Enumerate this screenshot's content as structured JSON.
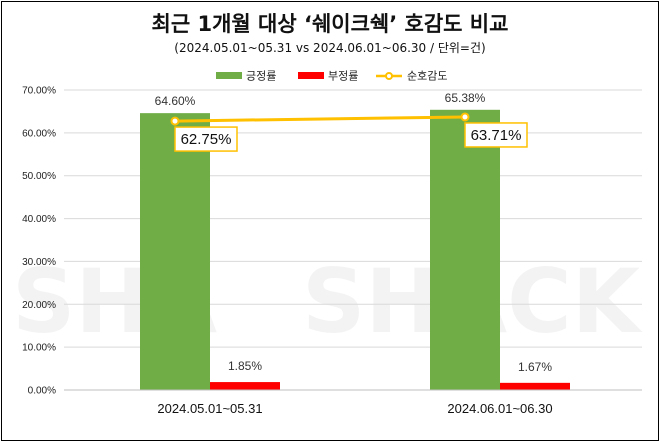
{
  "title": "최근 1개월 대상 ‘쉐이크쉑’ 호감도 비교",
  "subtitle": "(2024.05.01~05.31 vs 2024.06.01~06.30 / 단위=건)",
  "watermark": "SHAKE SHACK",
  "colors": {
    "positive": "#70AD47",
    "negative": "#FF0000",
    "line": "#FFC000",
    "grid": "#D9D9D9",
    "axis": "#BFBFBF"
  },
  "chart_data": {
    "type": "bar",
    "categories": [
      "2024.05.01~05.31",
      "2024.06.01~06.30"
    ],
    "series": [
      {
        "name": "긍정률",
        "kind": "bar",
        "values": [
          64.6,
          65.38
        ],
        "labels": [
          "64.60%",
          "65.38%"
        ]
      },
      {
        "name": "부정률",
        "kind": "bar",
        "values": [
          1.85,
          1.67
        ],
        "labels": [
          "1.85%",
          "1.67%"
        ]
      },
      {
        "name": "순호감도",
        "kind": "line",
        "values": [
          62.75,
          63.71
        ],
        "labels": [
          "62.75%",
          "63.71%"
        ]
      }
    ],
    "ylim": [
      0,
      70
    ],
    "yticks": [
      "0.00%",
      "10.00%",
      "20.00%",
      "30.00%",
      "40.00%",
      "50.00%",
      "60.00%",
      "70.00%"
    ],
    "legend_position": "top-center",
    "grid": true
  }
}
